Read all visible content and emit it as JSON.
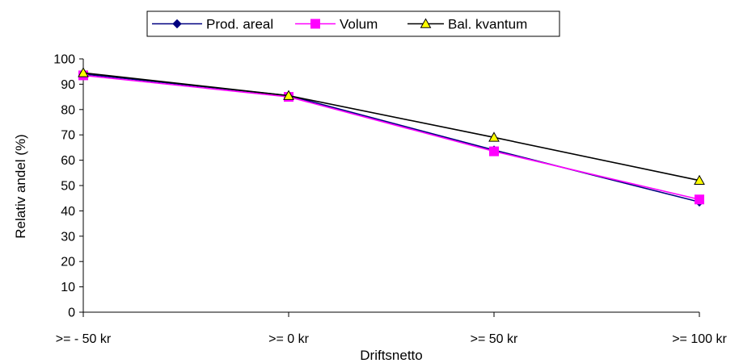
{
  "chart_data": {
    "type": "line",
    "xlabel": "Driftsnetto",
    "ylabel": "Relativ andel (%)",
    "ylim": [
      0,
      100
    ],
    "yticks": [
      0,
      10,
      20,
      30,
      40,
      50,
      60,
      70,
      80,
      90,
      100
    ],
    "categories": [
      ">= - 50 kr",
      ">= 0 kr",
      ">= 50 kr",
      ">= 100 kr"
    ],
    "grid": false,
    "legend": "top",
    "series": [
      {
        "name": "Prod. areal",
        "values": [
          94,
          85.5,
          64,
          43.5
        ],
        "color": "#000080",
        "marker": "diamond",
        "marker_fill": "#000080"
      },
      {
        "name": "Volum",
        "values": [
          93.5,
          85,
          63.5,
          44.5
        ],
        "color": "#ff00ff",
        "marker": "square",
        "marker_fill": "#ff00ff"
      },
      {
        "name": "Bal. kvantum",
        "values": [
          94.5,
          85.5,
          69,
          52
        ],
        "color": "#000000",
        "marker": "triangle",
        "marker_fill": "#ffff00"
      }
    ]
  }
}
